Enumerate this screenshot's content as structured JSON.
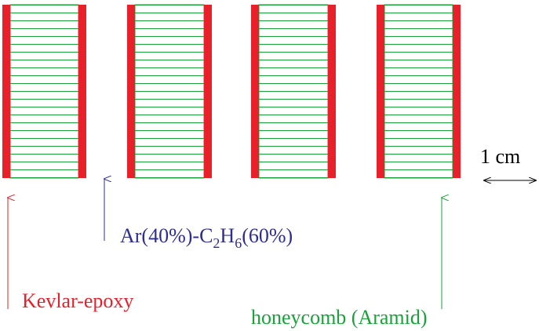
{
  "labels": {
    "kevlar": "Kevlar-epoxy",
    "gas": [
      "Ar(40%)-C",
      "2",
      "H",
      "6",
      "(60%)"
    ],
    "honeycomb": "honeycomb (Aramid)",
    "scale": "1 cm"
  }
}
